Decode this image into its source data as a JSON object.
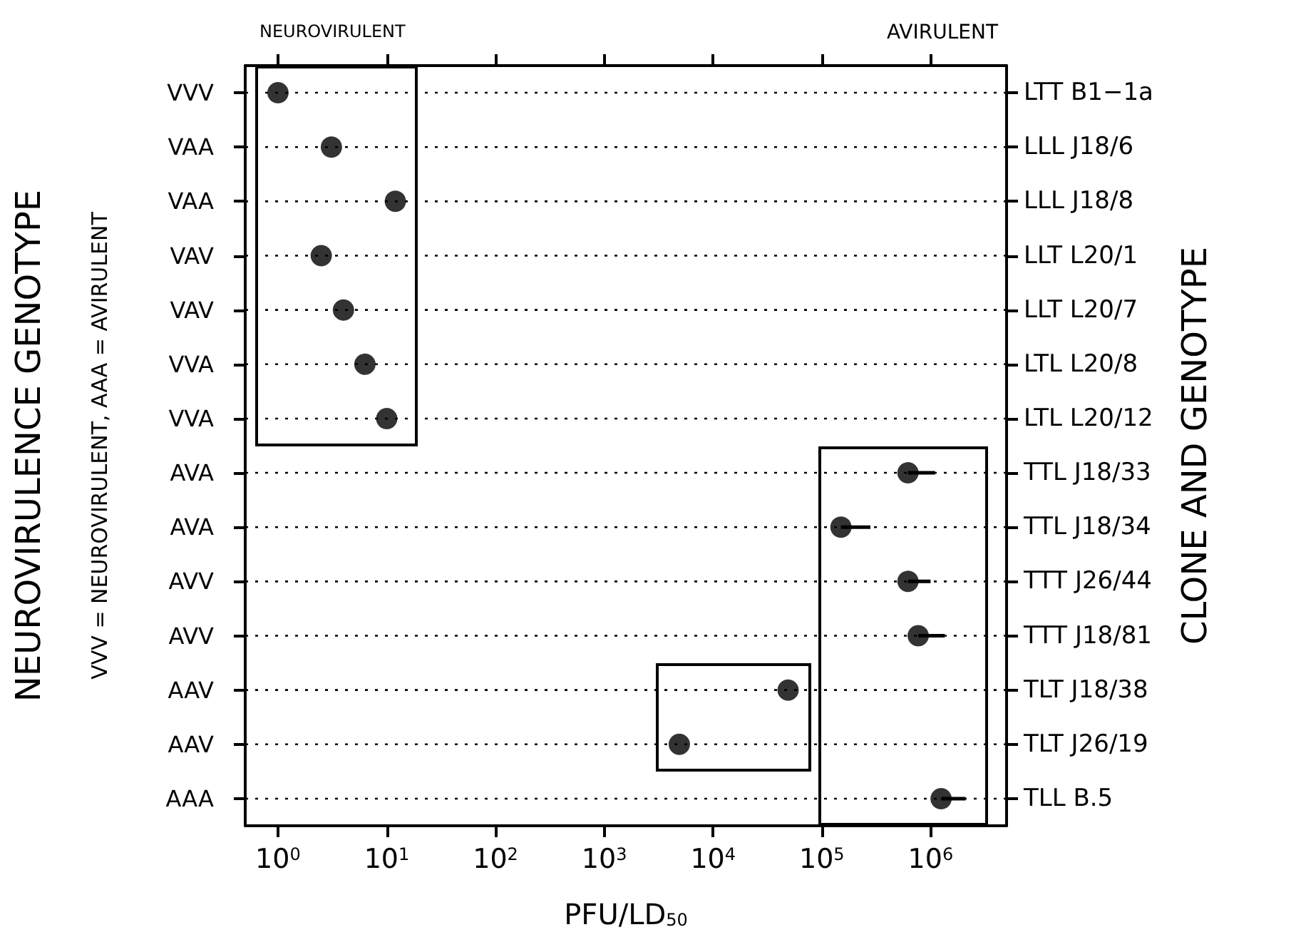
{
  "chart_data": {
    "type": "scatter",
    "orientation": "horizontal",
    "xlabel": "PFU/LD$_{50}$",
    "ylabel": "NEUROVIRULENCE GENOTYPE",
    "y2label": "CLONE AND GENOTYPE",
    "annotations": [
      "NEUROVIRULENT",
      "AVIRULENT",
      "VVV = NEUROVIRULENT, AAA = AVIRULENT"
    ],
    "categories": [
      "VVV",
      "VAA",
      "VAA",
      "VAV",
      "VAV",
      "VVA",
      "VVA",
      "AVA",
      "AVA",
      "AVV",
      "AVV",
      "AAV",
      "AAV",
      "AAA"
    ],
    "y2_categories": [
      "LTT B1−1a",
      "LLL J18/6",
      "LLL J18/8",
      "LLT L20/1",
      "LLT L20/7",
      "LTL L20/8",
      "LTL L20/12",
      "TTL J18/33",
      "TTL J18/34",
      "TTT J26/44",
      "TTT J18/81",
      "TLT J18/38",
      "TLT J26/19",
      "TLL B.5"
    ],
    "values": [
      1,
      3.1,
      12,
      2.5,
      4,
      6.3,
      10,
      620000,
      150000,
      620000,
      770000,
      49000,
      4900,
      1250000
    ],
    "errors": [
      null,
      null,
      null,
      null,
      null,
      null,
      null,
      [
        620000,
        1100000
      ],
      [
        150000,
        280000
      ],
      [
        620000,
        1000000
      ],
      [
        770000,
        1350000
      ],
      null,
      null,
      [
        1250000,
        2100000
      ]
    ],
    "color": "#000000",
    "marker": "circle",
    "log": "x",
    "grid": "y",
    "xlim": [
      0.5,
      5000000
    ],
    "xticks": [
      {
        "value": 1,
        "label": "10$^{0}$"
      },
      {
        "value": 10,
        "label": "10$^{1}$"
      },
      {
        "value": 100,
        "label": "10$^{2}$"
      },
      {
        "value": 1000,
        "label": "10$^{3}$"
      },
      {
        "value": 10000,
        "label": "10$^{4}$"
      },
      {
        "value": 100000,
        "label": "10$^{5}$"
      },
      {
        "value": 1000000,
        "label": "10$^{6}$"
      }
    ]
  }
}
